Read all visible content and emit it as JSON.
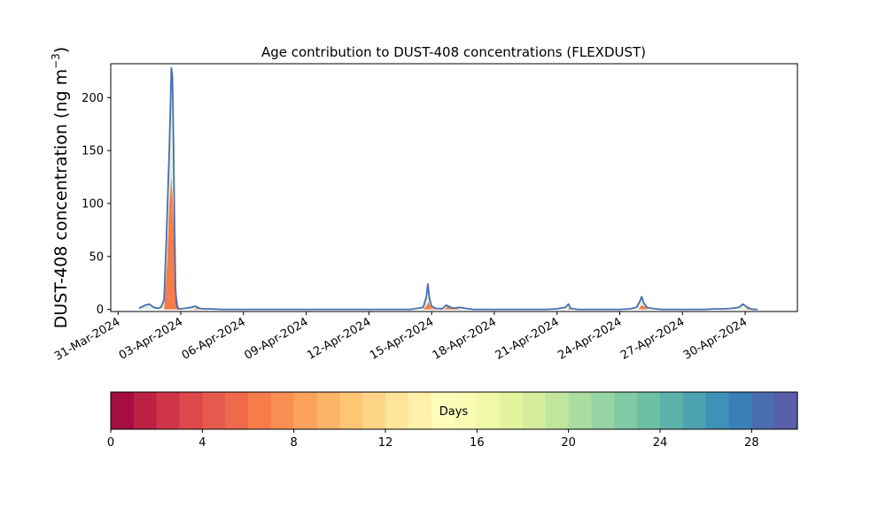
{
  "chart_data": {
    "type": "area",
    "title": "Age contribution to DUST-408 concentrations (FLEXDUST)",
    "ylabel_main": "DUST-408 concentration (ng m",
    "ylabel_sup": "−3",
    "ylabel_close": ")",
    "xlabel": "",
    "ylim": [
      -2,
      232
    ],
    "yticks": [
      0,
      50,
      100,
      150,
      200
    ],
    "ytick_labels": [
      "0",
      "50",
      "100",
      "150",
      "200"
    ],
    "xlim": [
      -0.35,
      32.5
    ],
    "xticks": [
      0,
      3,
      6,
      9,
      12,
      15,
      18,
      21,
      24,
      27,
      30
    ],
    "xtick_labels": [
      "31-Mar-2024",
      "03-Apr-2024",
      "06-Apr-2024",
      "09-Apr-2024",
      "12-Apr-2024",
      "15-Apr-2024",
      "18-Apr-2024",
      "21-Apr-2024",
      "24-Apr-2024",
      "27-Apr-2024",
      "30-Apr-2024"
    ],
    "x_unit": "days since 31-Mar-2024",
    "total": {
      "x": [
        1.0,
        1.3,
        1.5,
        1.7,
        1.9,
        2.05,
        2.2,
        2.3,
        2.45,
        2.55,
        2.6,
        2.65,
        2.7,
        2.75,
        2.8,
        2.85,
        2.9,
        3.0,
        3.2,
        3.5,
        3.7,
        3.9,
        4.1,
        4.4,
        5.0,
        6.0,
        8.0,
        10.0,
        12.0,
        14.0,
        14.6,
        14.75,
        14.82,
        14.9,
        15.0,
        15.2,
        15.5,
        15.7,
        15.9,
        16.1,
        16.3,
        16.6,
        17.0,
        19.0,
        20.5,
        21.0,
        21.4,
        21.55,
        21.65,
        21.8,
        22.0,
        23.0,
        24.0,
        24.5,
        24.8,
        24.95,
        25.05,
        25.15,
        25.3,
        25.5,
        26.0,
        27.0,
        28.0,
        28.6,
        29.0,
        29.4,
        29.7,
        29.9,
        30.1,
        30.25,
        30.4,
        30.6
      ],
      "values": [
        1,
        4,
        5,
        2,
        1,
        2,
        9,
        60,
        150,
        228,
        220,
        160,
        80,
        20,
        4,
        1,
        0.5,
        0.5,
        1,
        2,
        3,
        1,
        0.5,
        0.5,
        0,
        0,
        0,
        0,
        0,
        0,
        2,
        12,
        24,
        10,
        3,
        1,
        0.5,
        4,
        2,
        1,
        2,
        1,
        0,
        0,
        0,
        0.5,
        2,
        5,
        1,
        0.5,
        0,
        0,
        0,
        0.5,
        2,
        7,
        12,
        6,
        2,
        1,
        0,
        0,
        0,
        0.5,
        0.5,
        1,
        2,
        5,
        2,
        0.5,
        0,
        0
      ]
    },
    "young": {
      "x": [
        1.0,
        2.2,
        2.35,
        2.45,
        2.55,
        2.62,
        2.7,
        2.78,
        2.9,
        3.1,
        3.6,
        3.8,
        4.0,
        4.2,
        14.6,
        14.75,
        14.85,
        15.0,
        15.6,
        15.75,
        15.9,
        16.05,
        16.2,
        16.4,
        21.5,
        21.62,
        21.75,
        24.9,
        25.05,
        25.2,
        25.35,
        30.0,
        30.2,
        30.35,
        30.6
      ],
      "values": [
        0,
        0,
        45,
        98,
        125,
        100,
        55,
        15,
        2,
        0,
        0,
        1.5,
        1,
        0,
        0,
        3,
        7,
        1,
        0,
        2.5,
        1.5,
        2,
        1,
        0,
        0,
        2,
        0,
        0,
        4,
        2.5,
        0,
        0,
        2,
        1,
        0
      ]
    },
    "colorbar": {
      "label": "Days",
      "range": [
        0,
        30
      ],
      "ticks": [
        0,
        4,
        8,
        12,
        16,
        20,
        24,
        28
      ],
      "tick_labels": [
        "0",
        "4",
        "8",
        "12",
        "16",
        "20",
        "24",
        "28"
      ],
      "colors": [
        "#a50d43",
        "#bd2245",
        "#cf3549",
        "#dc484b",
        "#e65a4d",
        "#ee6a4a",
        "#f67c4a",
        "#f98f53",
        "#fca25d",
        "#fdb468",
        "#fec575",
        "#fed586",
        "#fee498",
        "#fff1a9",
        "#fffcba",
        "#f9fcb4",
        "#eff9a8",
        "#e3f49d",
        "#d3ed9b",
        "#c0e69d",
        "#aadda1",
        "#97d4a3",
        "#81cba4",
        "#6ec0a5",
        "#5cb2aa",
        "#4da2b1",
        "#3f91b8",
        "#3a7fb7",
        "#4a6cb0",
        "#5a5ea8"
      ]
    },
    "series_colors": {
      "total": "#4a6cb0",
      "young": "#f67c4a",
      "mid": "#a7d9a2"
    }
  }
}
